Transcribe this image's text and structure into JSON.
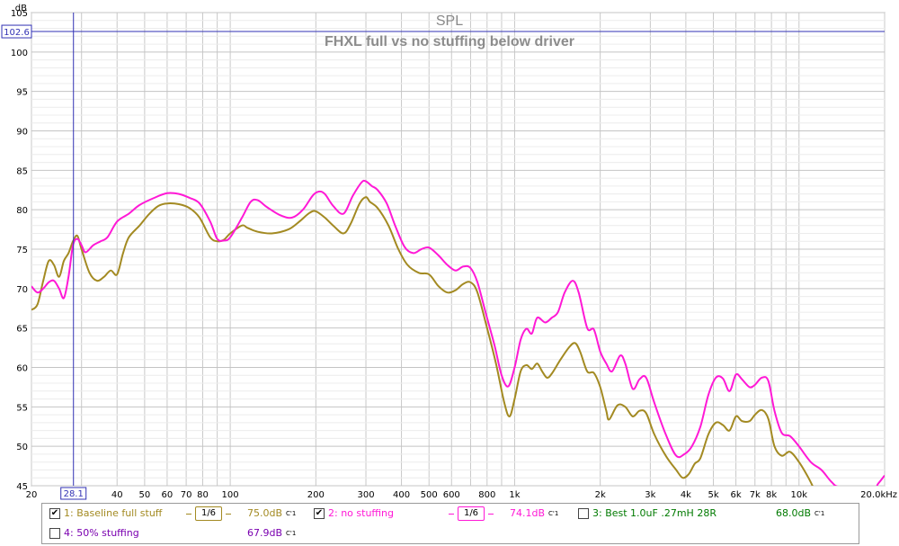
{
  "chart_data": {
    "type": "line",
    "title": "SPL",
    "subtitle": "FHXL full vs no stuffing below driver",
    "ylabel": "dB",
    "xscale": "log",
    "xlim": [
      20,
      20000
    ],
    "ylim": [
      45,
      105
    ],
    "yticks": [
      "45",
      "50",
      "55",
      "60",
      "65",
      "70",
      "75",
      "80",
      "85",
      "90",
      "95",
      "100",
      "105"
    ],
    "xticks": [
      {
        "v": 20,
        "l": "20"
      },
      {
        "v": 30,
        "l": ""
      },
      {
        "v": 40,
        "l": "40"
      },
      {
        "v": 50,
        "l": "50"
      },
      {
        "v": 60,
        "l": "60"
      },
      {
        "v": 70,
        "l": "70"
      },
      {
        "v": 80,
        "l": "80"
      },
      {
        "v": 100,
        "l": "100"
      },
      {
        "v": 200,
        "l": "200"
      },
      {
        "v": 300,
        "l": "300"
      },
      {
        "v": 400,
        "l": "400"
      },
      {
        "v": 500,
        "l": "500"
      },
      {
        "v": 600,
        "l": "600"
      },
      {
        "v": 800,
        "l": "800"
      },
      {
        "v": 1000,
        "l": "1k"
      },
      {
        "v": 2000,
        "l": "2k"
      },
      {
        "v": 3000,
        "l": "3k"
      },
      {
        "v": 4000,
        "l": "4k"
      },
      {
        "v": 5000,
        "l": "5k"
      },
      {
        "v": 6000,
        "l": "6k"
      },
      {
        "v": 7000,
        "l": "7k"
      },
      {
        "v": 8000,
        "l": "8k"
      },
      {
        "v": 10000,
        "l": "10k"
      },
      {
        "v": 20000,
        "l": "20.0kHz"
      }
    ],
    "grid": true,
    "cursor": {
      "x": 28.1,
      "y": 102.6,
      "x_label": "28.1",
      "y_label": "102.6"
    },
    "series": [
      {
        "name": "1: Baseline full stuff",
        "color": "#a38a22",
        "points": [
          [
            20,
            67.3
          ],
          [
            21,
            68
          ],
          [
            22,
            71
          ],
          [
            23,
            73.5
          ],
          [
            24,
            73
          ],
          [
            25,
            71.5
          ],
          [
            26,
            73.5
          ],
          [
            27,
            74.5
          ],
          [
            28,
            76
          ],
          [
            29,
            76.7
          ],
          [
            30,
            75
          ],
          [
            32,
            72
          ],
          [
            34,
            71
          ],
          [
            36,
            71.5
          ],
          [
            38,
            72.3
          ],
          [
            40,
            71.8
          ],
          [
            42,
            74.5
          ],
          [
            44,
            76.5
          ],
          [
            48,
            78
          ],
          [
            52,
            79.5
          ],
          [
            56,
            80.5
          ],
          [
            60,
            80.8
          ],
          [
            66,
            80.7
          ],
          [
            72,
            80.2
          ],
          [
            78,
            79
          ],
          [
            85,
            76.5
          ],
          [
            90,
            76
          ],
          [
            95,
            76.2
          ],
          [
            100,
            77
          ],
          [
            110,
            78
          ],
          [
            115,
            77.7
          ],
          [
            125,
            77.2
          ],
          [
            140,
            77
          ],
          [
            160,
            77.5
          ],
          [
            175,
            78.5
          ],
          [
            190,
            79.6
          ],
          [
            200,
            79.8
          ],
          [
            215,
            79
          ],
          [
            230,
            78
          ],
          [
            250,
            77
          ],
          [
            265,
            78.2
          ],
          [
            285,
            80.8
          ],
          [
            300,
            81.6
          ],
          [
            310,
            81
          ],
          [
            330,
            80.2
          ],
          [
            360,
            78
          ],
          [
            390,
            75
          ],
          [
            420,
            73
          ],
          [
            460,
            72
          ],
          [
            500,
            71.8
          ],
          [
            540,
            70.3
          ],
          [
            580,
            69.5
          ],
          [
            620,
            69.8
          ],
          [
            660,
            70.6
          ],
          [
            700,
            70.8
          ],
          [
            740,
            69.5
          ],
          [
            800,
            65
          ],
          [
            860,
            60.5
          ],
          [
            920,
            55.5
          ],
          [
            960,
            53.8
          ],
          [
            1000,
            56
          ],
          [
            1050,
            59.5
          ],
          [
            1100,
            60.3
          ],
          [
            1150,
            59.8
          ],
          [
            1200,
            60.5
          ],
          [
            1250,
            59.5
          ],
          [
            1300,
            58.7
          ],
          [
            1350,
            59.2
          ],
          [
            1450,
            61
          ],
          [
            1550,
            62.5
          ],
          [
            1630,
            63.1
          ],
          [
            1700,
            62
          ],
          [
            1800,
            59.5
          ],
          [
            1900,
            59.3
          ],
          [
            2000,
            57.5
          ],
          [
            2100,
            54.5
          ],
          [
            2150,
            53.4
          ],
          [
            2300,
            55.2
          ],
          [
            2450,
            55
          ],
          [
            2600,
            53.8
          ],
          [
            2750,
            54.5
          ],
          [
            2900,
            54.2
          ],
          [
            3100,
            51.5
          ],
          [
            3400,
            48.8
          ],
          [
            3700,
            47
          ],
          [
            3900,
            46
          ],
          [
            4100,
            46.5
          ],
          [
            4300,
            47.8
          ],
          [
            4500,
            48.5
          ],
          [
            4800,
            51.5
          ],
          [
            5100,
            53
          ],
          [
            5400,
            52.7
          ],
          [
            5700,
            52
          ],
          [
            6000,
            53.8
          ],
          [
            6300,
            53.2
          ],
          [
            6700,
            53.2
          ],
          [
            7000,
            54
          ],
          [
            7400,
            54.6
          ],
          [
            7800,
            53.5
          ],
          [
            8200,
            50
          ],
          [
            8700,
            48.8
          ],
          [
            9300,
            49.3
          ],
          [
            10000,
            48
          ],
          [
            10800,
            46
          ],
          [
            11500,
            44
          ]
        ]
      },
      {
        "name": "2: no stuffing",
        "color": "#ff19d6",
        "points": [
          [
            20,
            70.3
          ],
          [
            21,
            69.5
          ],
          [
            22,
            70
          ],
          [
            23,
            70.8
          ],
          [
            24,
            71
          ],
          [
            25,
            70
          ],
          [
            26,
            68.8
          ],
          [
            27,
            71.5
          ],
          [
            28,
            75.5
          ],
          [
            29,
            76.3
          ],
          [
            30,
            75.5
          ],
          [
            31,
            74.6
          ],
          [
            33,
            75.5
          ],
          [
            35,
            76
          ],
          [
            37,
            76.5
          ],
          [
            40,
            78.5
          ],
          [
            44,
            79.5
          ],
          [
            48,
            80.6
          ],
          [
            54,
            81.5
          ],
          [
            60,
            82.1
          ],
          [
            66,
            82
          ],
          [
            72,
            81.5
          ],
          [
            78,
            80.8
          ],
          [
            85,
            78.5
          ],
          [
            90,
            76.3
          ],
          [
            95,
            76.1
          ],
          [
            100,
            76.5
          ],
          [
            110,
            79
          ],
          [
            118,
            81
          ],
          [
            125,
            81.2
          ],
          [
            135,
            80.3
          ],
          [
            150,
            79.3
          ],
          [
            165,
            79
          ],
          [
            180,
            80
          ],
          [
            195,
            81.8
          ],
          [
            205,
            82.3
          ],
          [
            215,
            82
          ],
          [
            230,
            80.5
          ],
          [
            250,
            79.5
          ],
          [
            270,
            81.8
          ],
          [
            290,
            83.5
          ],
          [
            300,
            83.6
          ],
          [
            315,
            83
          ],
          [
            330,
            82.5
          ],
          [
            355,
            80.8
          ],
          [
            380,
            78
          ],
          [
            410,
            75.3
          ],
          [
            440,
            74.5
          ],
          [
            470,
            75
          ],
          [
            500,
            75.2
          ],
          [
            540,
            74.2
          ],
          [
            580,
            73
          ],
          [
            620,
            72.3
          ],
          [
            660,
            72.8
          ],
          [
            700,
            72.6
          ],
          [
            740,
            70.8
          ],
          [
            790,
            67
          ],
          [
            850,
            62.8
          ],
          [
            900,
            59
          ],
          [
            950,
            57.6
          ],
          [
            1000,
            60
          ],
          [
            1050,
            63.5
          ],
          [
            1100,
            64.9
          ],
          [
            1150,
            64.3
          ],
          [
            1200,
            66.3
          ],
          [
            1280,
            65.7
          ],
          [
            1350,
            66.3
          ],
          [
            1420,
            67
          ],
          [
            1500,
            69.5
          ],
          [
            1600,
            71
          ],
          [
            1680,
            69.5
          ],
          [
            1800,
            65
          ],
          [
            1900,
            64.8
          ],
          [
            2000,
            62
          ],
          [
            2100,
            60.5
          ],
          [
            2200,
            59.5
          ],
          [
            2350,
            61.5
          ],
          [
            2450,
            60.5
          ],
          [
            2600,
            57.3
          ],
          [
            2750,
            58.5
          ],
          [
            2900,
            58.7
          ],
          [
            3100,
            55.5
          ],
          [
            3400,
            51.5
          ],
          [
            3700,
            48.8
          ],
          [
            3950,
            49
          ],
          [
            4200,
            50
          ],
          [
            4500,
            52.5
          ],
          [
            4800,
            56.5
          ],
          [
            5100,
            58.7
          ],
          [
            5400,
            58.6
          ],
          [
            5700,
            57
          ],
          [
            6000,
            59.1
          ],
          [
            6300,
            58.5
          ],
          [
            6700,
            57.5
          ],
          [
            7000,
            57.8
          ],
          [
            7400,
            58.7
          ],
          [
            7800,
            58.3
          ],
          [
            8200,
            54.5
          ],
          [
            8700,
            51.7
          ],
          [
            9300,
            51.3
          ],
          [
            10000,
            50
          ],
          [
            11000,
            48
          ],
          [
            12000,
            47
          ],
          [
            13000,
            45.5
          ],
          [
            14000,
            44.8
          ],
          [
            18000,
            44.5
          ],
          [
            19000,
            45.3
          ],
          [
            20000,
            46.3
          ]
        ]
      }
    ]
  },
  "legend": {
    "items": [
      {
        "label": "1: Baseline full stuff",
        "checked": true,
        "smooth": "1/6",
        "level": "75.0dB",
        "unit": "C'1",
        "color": "#a38a22"
      },
      {
        "label": "2: no stuffing",
        "checked": true,
        "smooth": "1/6",
        "level": "74.1dB",
        "unit": "C'1",
        "color": "#ff19d6"
      },
      {
        "label": "3: Best 1.0uF .27mH 28R",
        "checked": false,
        "level": "68.0dB",
        "unit": "C'1",
        "color": "#007a00"
      },
      {
        "label": "4: 50% stuffing",
        "checked": false,
        "level": "67.9dB",
        "unit": "C'1",
        "color": "#7a00b0"
      }
    ]
  }
}
